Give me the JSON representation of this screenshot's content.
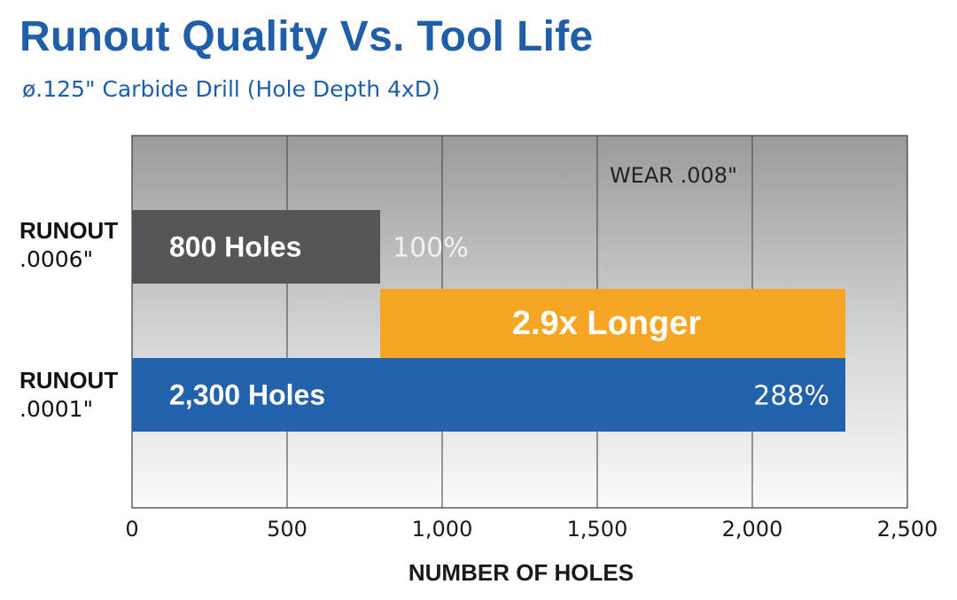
{
  "chart_data": {
    "type": "bar",
    "orientation": "horizontal",
    "title": "Runout Quality Vs. Tool Life",
    "subtitle": "ø.125\" Carbide Drill (Hole Depth 4xD)",
    "xlabel": "NUMBER OF HOLES",
    "xlim": [
      0,
      2500
    ],
    "x_ticks": [
      "0",
      "500",
      "1,000",
      "1,500",
      "2,000",
      "2,500"
    ],
    "x_tick_values": [
      0,
      500,
      1000,
      1500,
      2000,
      2500
    ],
    "grid": true,
    "annotation": "WEAR .008\"",
    "categories": [
      {
        "label_line1": "RUNOUT",
        "label_line2": ".0006\""
      },
      {
        "label_line1": "RUNOUT",
        "label_line2": ".0001\""
      }
    ],
    "bars": [
      {
        "name": "runout-0006",
        "value": 800,
        "label": "800 Holes",
        "percent": "100%",
        "color": "#56565a"
      },
      {
        "name": "runout-0001",
        "value": 2300,
        "label": "2,300 Holes",
        "percent": "288%",
        "color": "#2262ad"
      }
    ],
    "difference_bar": {
      "start": 800,
      "end": 2300,
      "label": "2.9x Longer",
      "color": "#f5a623"
    }
  }
}
